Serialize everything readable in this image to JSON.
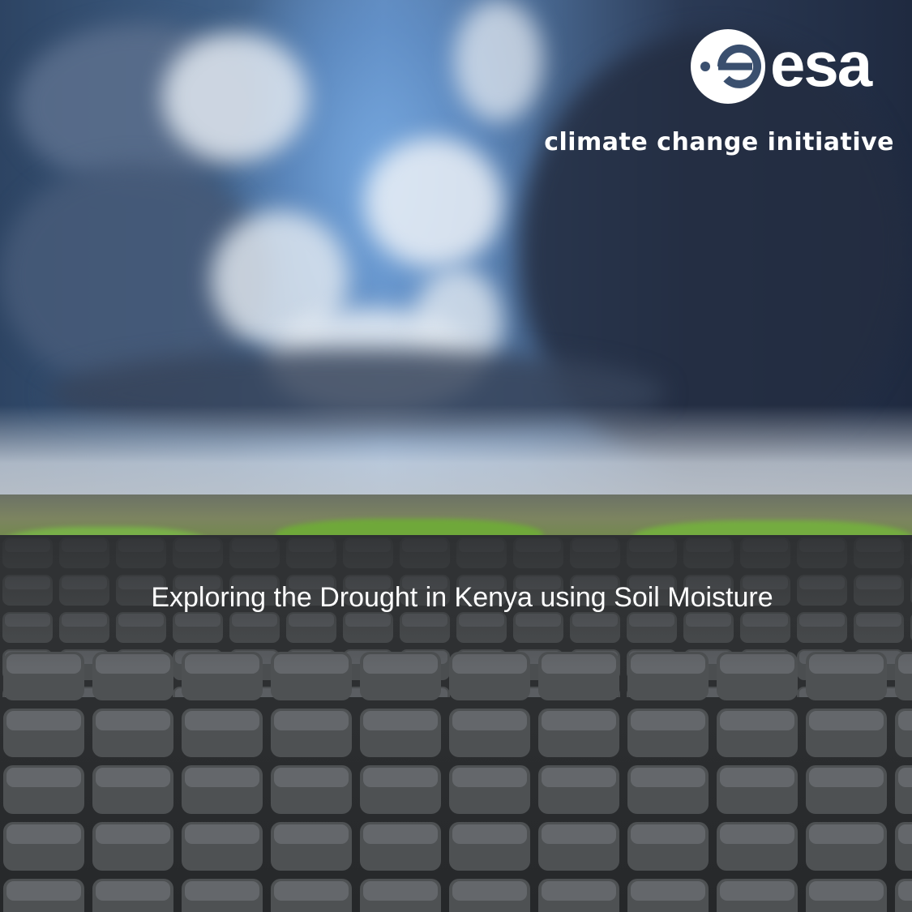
{
  "logo": {
    "wordmark": "esa"
  },
  "tagline": "climate change initiative",
  "title": "Exploring the Drought in Kenya using Soil Moisture",
  "colors": {
    "text": "#ffffff",
    "sky": "#5f86b6",
    "storm": "#1f2a40",
    "grass": "#6fa83a",
    "mud": "#2e3032"
  }
}
